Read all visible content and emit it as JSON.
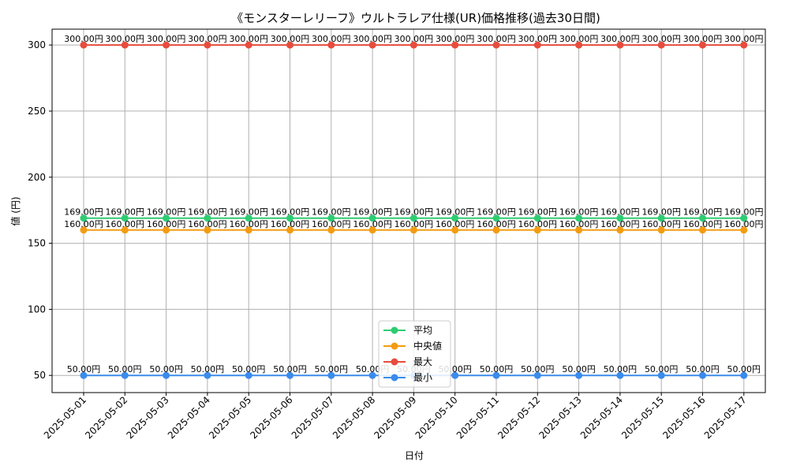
{
  "chart_data": {
    "type": "line",
    "title": "《モンスターレリーフ》ウルトラレア仕様(UR)価格推移(過去30日間)",
    "xlabel": "日付",
    "ylabel": "値 (円)",
    "categories": [
      "2025-05-01",
      "2025-05-02",
      "2025-05-03",
      "2025-05-04",
      "2025-05-05",
      "2025-05-06",
      "2025-05-07",
      "2025-05-08",
      "2025-05-09",
      "2025-05-10",
      "2025-05-11",
      "2025-05-12",
      "2025-05-13",
      "2025-05-14",
      "2025-05-15",
      "2025-05-16",
      "2025-05-17"
    ],
    "ylim": [
      37,
      312
    ],
    "yticks": [
      50,
      100,
      150,
      200,
      250,
      300
    ],
    "grid": true,
    "legend_position": "bottom-center",
    "series": [
      {
        "name": "平均",
        "color": "#2ecc71",
        "label_suffix": "円",
        "values": [
          169,
          169,
          169,
          169,
          169,
          169,
          169,
          169,
          169,
          169,
          169,
          169,
          169,
          169,
          169,
          169,
          169
        ],
        "labels": [
          "169.00円",
          "169.00円",
          "169.00円",
          "169.00円",
          "169.00円",
          "169.00円",
          "169.00円",
          "169.00円",
          "169.00円",
          "169.00円",
          "169.00円",
          "169.00円",
          "169.00円",
          "169.00円",
          "169.00円",
          "169.00円",
          "169.00円"
        ]
      },
      {
        "name": "中央値",
        "color": "#f39c12",
        "values": [
          160,
          160,
          160,
          160,
          160,
          160,
          160,
          160,
          160,
          160,
          160,
          160,
          160,
          160,
          160,
          160,
          160
        ],
        "labels": [
          "160.00円",
          "160.00円",
          "160.00円",
          "160.00円",
          "160.00円",
          "160.00円",
          "160.00円",
          "160.00円",
          "160.00円",
          "160.00円",
          "160.00円",
          "160.00円",
          "160.00円",
          "160.00円",
          "160.00円",
          "160.00円",
          "160.00円"
        ]
      },
      {
        "name": "最大",
        "color": "#e74c3c",
        "values": [
          300,
          300,
          300,
          300,
          300,
          300,
          300,
          300,
          300,
          300,
          300,
          300,
          300,
          300,
          300,
          300,
          300
        ],
        "labels": [
          "300.00円",
          "300.00円",
          "300.00円",
          "300.00円",
          "300.00円",
          "300.00円",
          "300.00円",
          "300.00円",
          "300.00円",
          "300.00円",
          "300.00円",
          "300.00円",
          "300.00円",
          "300.00円",
          "300.00円",
          "300.00円",
          "300.00円"
        ]
      },
      {
        "name": "最小",
        "color": "#3b8beb",
        "values": [
          50,
          50,
          50,
          50,
          50,
          50,
          50,
          50,
          50,
          50,
          50,
          50,
          50,
          50,
          50,
          50,
          50
        ],
        "labels": [
          "50.00円",
          "50.00円",
          "50.00円",
          "50.00円",
          "50.00円",
          "50.00円",
          "50.00円",
          "50.00円",
          "50.00円",
          "50.00円",
          "50.00円",
          "50.00円",
          "50.00円",
          "50.00円",
          "50.00円",
          "50.00円",
          "50.00円"
        ]
      }
    ]
  }
}
